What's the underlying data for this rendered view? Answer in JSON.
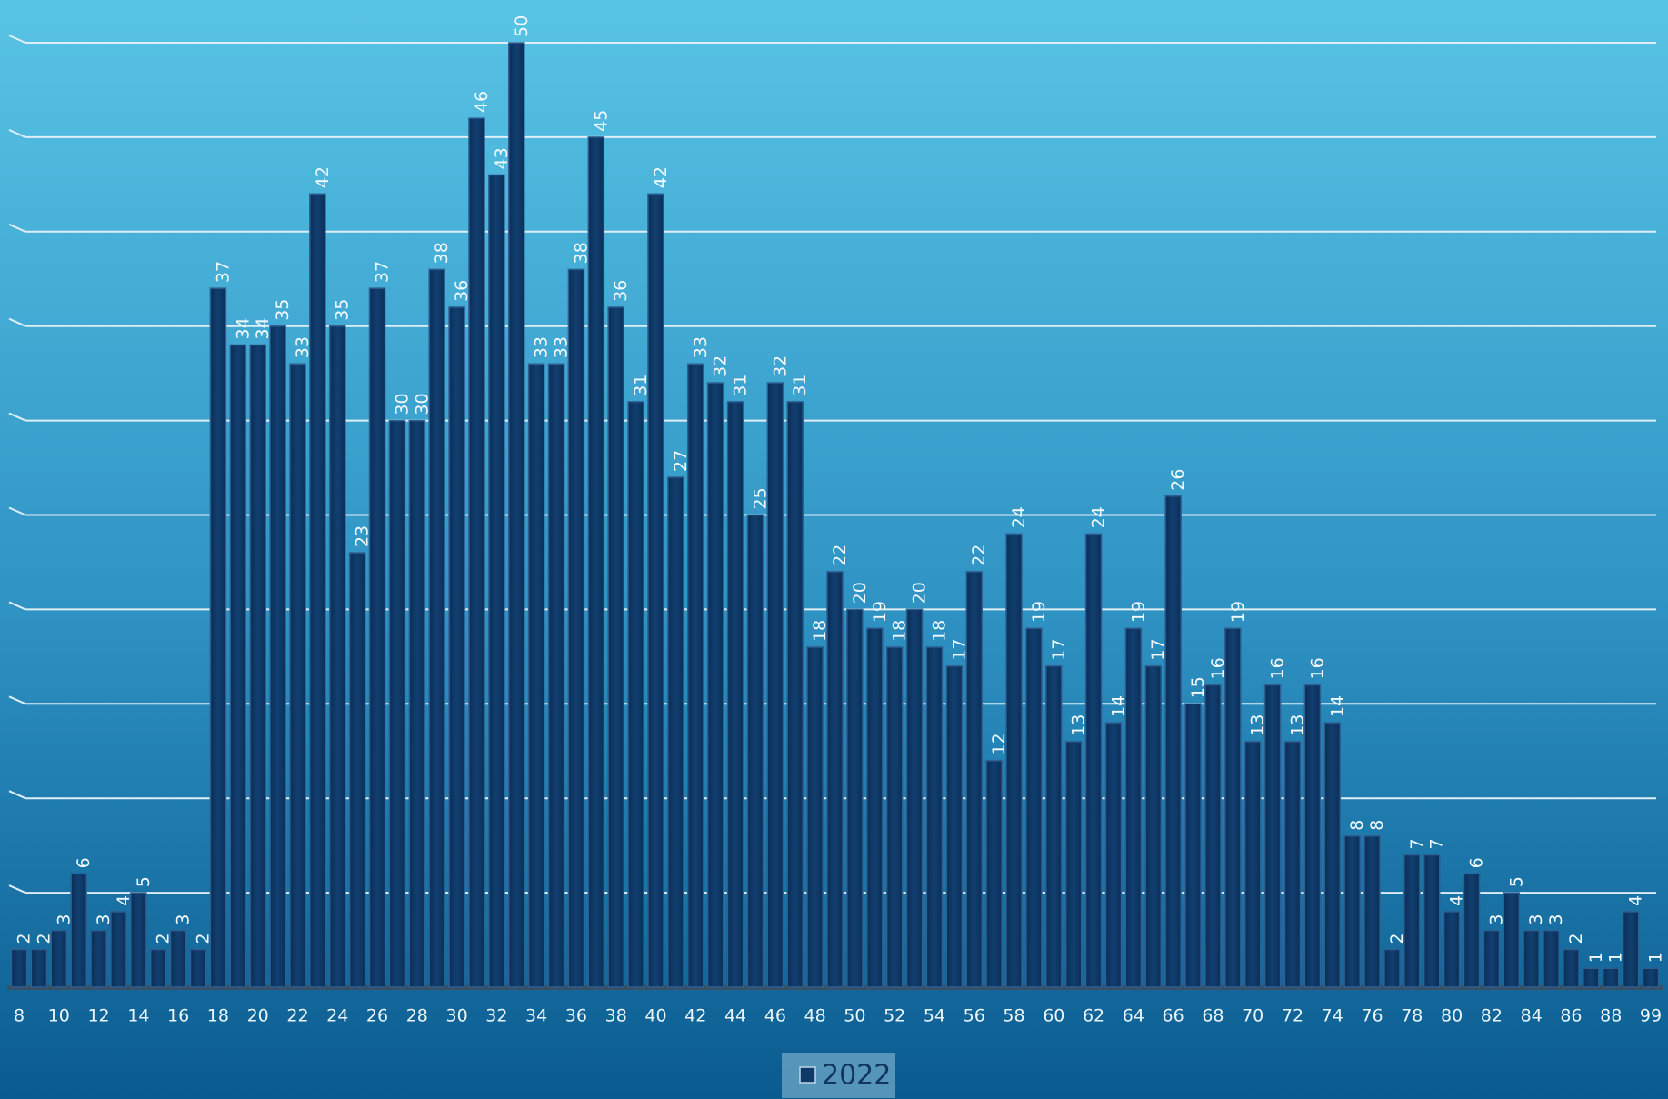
{
  "chart_data": {
    "type": "bar",
    "categories": [
      "8",
      "9",
      "10",
      "11",
      "12",
      "13",
      "14",
      "15",
      "16",
      "17",
      "18",
      "19",
      "20",
      "21",
      "22",
      "23",
      "24",
      "25",
      "26",
      "27",
      "28",
      "29",
      "30",
      "31",
      "32",
      "33",
      "34",
      "35",
      "36",
      "37",
      "38",
      "39",
      "40",
      "41",
      "42",
      "43",
      "44",
      "45",
      "46",
      "47",
      "48",
      "49",
      "50",
      "51",
      "52",
      "53",
      "54",
      "55",
      "56",
      "57",
      "58",
      "59",
      "60",
      "61",
      "62",
      "63",
      "64",
      "65",
      "66",
      "67",
      "68",
      "69",
      "70",
      "71",
      "72",
      "73",
      "74",
      "75",
      "76",
      "77",
      "78",
      "79",
      "80",
      "81",
      "82",
      "83",
      "84",
      "85",
      "86",
      "87",
      "88",
      "89",
      "99"
    ],
    "series": [
      {
        "name": "2022",
        "color": "#0e3a6a",
        "values": [
          2,
          2,
          3,
          6,
          3,
          4,
          5,
          2,
          3,
          2,
          37,
          34,
          34,
          35,
          33,
          42,
          35,
          23,
          37,
          30,
          30,
          38,
          36,
          46,
          43,
          50,
          33,
          33,
          38,
          45,
          36,
          31,
          42,
          27,
          33,
          32,
          31,
          25,
          32,
          31,
          18,
          22,
          20,
          19,
          18,
          20,
          18,
          17,
          22,
          12,
          24,
          19,
          17,
          13,
          24,
          14,
          19,
          17,
          26,
          15,
          16,
          19,
          13,
          16,
          13,
          16,
          14,
          8,
          8,
          2,
          7,
          7,
          4,
          6,
          3,
          5,
          3,
          3,
          2,
          1,
          1,
          4,
          1
        ]
      }
    ],
    "ylim": [
      0,
      50
    ],
    "yticks": [
      0,
      5,
      10,
      15,
      20,
      25,
      30,
      35,
      40,
      45,
      50
    ],
    "grid": true,
    "legend": "bottom"
  }
}
